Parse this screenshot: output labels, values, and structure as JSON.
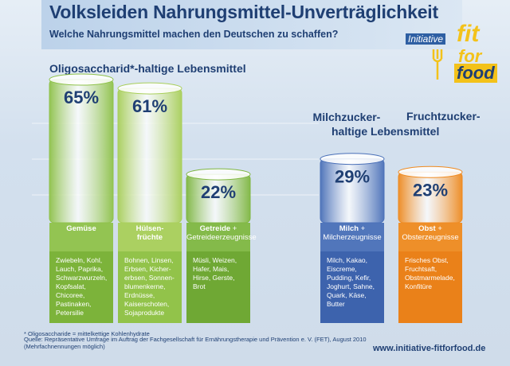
{
  "header": {
    "title": "Volksleiden Nahrungsmittel-Unverträglichkeit",
    "subtitle": "Welche Nahrungsmittel machen den Deutschen zu schaffen?"
  },
  "logo": {
    "initiative": "Initiative",
    "fit": "fit",
    "for": "for",
    "food": "food"
  },
  "section": {
    "oligo_title": "Oligosaccharid*-haltige Lebensmittel",
    "milk_title_line1": "Milchzucker-",
    "milk_title_line2": "haltige Lebensmittel",
    "fruit_title": "Fruchtzucker-"
  },
  "chart_data": {
    "type": "bar",
    "title": "Volksleiden Nahrungsmittel-Unverträglichkeit",
    "unit": "%",
    "categories": [
      "Gemüse",
      "Hülsenfrüchte",
      "Getreide + Getreideerzeugnisse",
      "Milch + Milcherzeugnisse",
      "Obst + Obsterzeugnisse"
    ],
    "values": [
      65,
      61,
      22,
      29,
      23
    ],
    "value_labels": [
      "65%",
      "61%",
      "22%",
      "29%",
      "23%"
    ],
    "groups": [
      "Oligosaccharid*-haltige Lebensmittel",
      "Oligosaccharid*-haltige Lebensmittel",
      "Oligosaccharid*-haltige Lebensmittel",
      "Milchzucker-haltige Lebensmittel",
      "Fruchtzucker-haltige Lebensmittel"
    ],
    "colors": [
      "#8fc24a",
      "#a9cf5a",
      "#7fb741",
      "#4a70b8",
      "#ef8a1f"
    ]
  },
  "categories": [
    {
      "label_bold": "Gemüse",
      "label_rest": "",
      "examples": "Zwiebeln, Kohl,\nLauch, Paprika,\nSchwarzwurzeln,\nKopfsalat,\nChicoree,\nPastinaken,\nPetersilie"
    },
    {
      "label_bold": "Hülsen-\nfrüchte",
      "label_rest": "",
      "examples": "Bohnen, Linsen,\nErbsen, Kicher-\nerbsen, Sonnen-\nblumenkerne,\nErdnüsse,\nKaiserschoten,\nSojaprodukte"
    },
    {
      "label_bold": "Getreide",
      "label_rest": " +\nGetreideerzeugnisse",
      "examples": "Müsli, Weizen,\nHafer, Mais,\nHirse, Gerste,\nBrot"
    },
    {
      "label_bold": "Milch",
      "label_rest": " +\nMilcherzeugnisse",
      "examples": "Milch, Kakao,\nEiscreme,\nPudding, Kefir,\nJoghurt, Sahne,\nQuark, Käse,\nButter"
    },
    {
      "label_bold": "Obst",
      "label_rest": " +\nObsterzeugnisse",
      "examples": "Frisches Obst,\nFruchtsaft,\nObstmarmelade,\nKonfitüre"
    }
  ],
  "footer": {
    "note1": "* Oligosaccharide = mittelkettige Kohlenhydrate",
    "note2": "Quelle: Repräsentative Umfrage im Auftrag der Fachgesellschaft für Ernährungstherapie und Prävention e. V. (FET), August 2010",
    "note3": "(Mehrfachnennungen möglich)",
    "url": "www.initiative-fitforfood.de"
  }
}
